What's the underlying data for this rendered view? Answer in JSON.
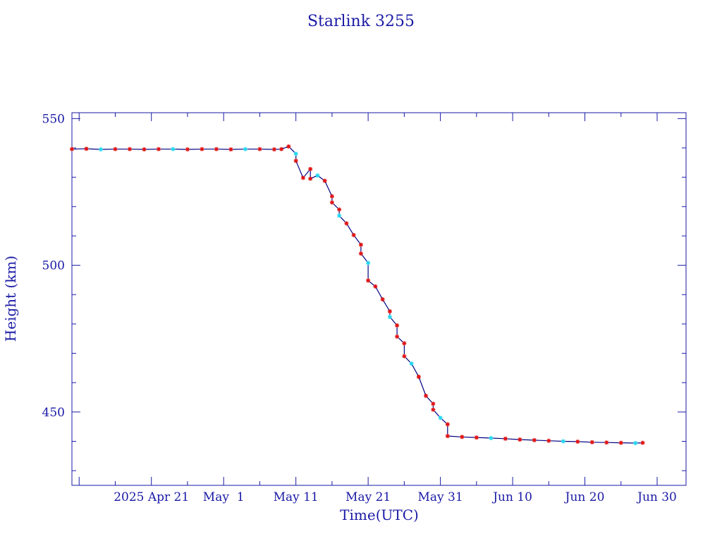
{
  "chart_data": {
    "type": "line",
    "title": "Starlink 3255",
    "xlabel": "Time(UTC)",
    "ylabel": "Height (km)",
    "xlim": [
      "2025-04-10",
      "2025-07-04"
    ],
    "ylim": [
      425,
      552
    ],
    "x_ticks": [
      {
        "date": "2025-04-21",
        "label": "2025 Apr 21"
      },
      {
        "date": "2025-05-01",
        "label": "May  1"
      },
      {
        "date": "2025-05-11",
        "label": "May 11"
      },
      {
        "date": "2025-05-21",
        "label": "May 21"
      },
      {
        "date": "2025-05-31",
        "label": "May 31"
      },
      {
        "date": "2025-06-10",
        "label": "Jun 10"
      },
      {
        "date": "2025-06-20",
        "label": "Jun 20"
      },
      {
        "date": "2025-06-30",
        "label": "Jun 30"
      }
    ],
    "y_ticks": [
      450,
      500,
      550
    ],
    "grid": false,
    "colors": {
      "axis": "#1a1aa6",
      "line": "#000080",
      "marker_red": "#e01010",
      "marker_cyan": "#20d8f0"
    },
    "series": [
      {
        "marker": "star",
        "points": [
          [
            "2025-04-10",
            539.6
          ],
          [
            "2025-04-12",
            539.7
          ],
          [
            "2025-04-14",
            539.5
          ],
          [
            "2025-04-16",
            539.6
          ],
          [
            "2025-04-18",
            539.6
          ],
          [
            "2025-04-20",
            539.5
          ],
          [
            "2025-04-22",
            539.6
          ],
          [
            "2025-04-24",
            539.6
          ],
          [
            "2025-04-26",
            539.5
          ],
          [
            "2025-04-28",
            539.6
          ],
          [
            "2025-04-30",
            539.6
          ],
          [
            "2025-05-02",
            539.5
          ],
          [
            "2025-05-04",
            539.6
          ],
          [
            "2025-05-06",
            539.6
          ],
          [
            "2025-05-08",
            539.5
          ],
          [
            "2025-05-09",
            539.6
          ],
          [
            "2025-05-10",
            540.5
          ],
          [
            "2025-05-11",
            538.0
          ],
          [
            "2025-05-11",
            535.6
          ],
          [
            "2025-05-12",
            529.8
          ],
          [
            "2025-05-13",
            532.8
          ],
          [
            "2025-05-13",
            529.5
          ],
          [
            "2025-05-14",
            530.6
          ],
          [
            "2025-05-15",
            528.8
          ],
          [
            "2025-05-16",
            523.5
          ],
          [
            "2025-05-16",
            521.4
          ],
          [
            "2025-05-17",
            519.0
          ],
          [
            "2025-05-17",
            516.9
          ],
          [
            "2025-05-18",
            514.3
          ],
          [
            "2025-05-19",
            510.3
          ],
          [
            "2025-05-20",
            507.0
          ],
          [
            "2025-05-20",
            504.0
          ],
          [
            "2025-05-21",
            500.8
          ],
          [
            "2025-05-21",
            494.8
          ],
          [
            "2025-05-22",
            492.8
          ],
          [
            "2025-05-23",
            488.4
          ],
          [
            "2025-05-24",
            484.3
          ],
          [
            "2025-05-24",
            482.4
          ],
          [
            "2025-05-25",
            479.5
          ],
          [
            "2025-05-25",
            475.7
          ],
          [
            "2025-05-26",
            473.4
          ],
          [
            "2025-05-26",
            469.0
          ],
          [
            "2025-05-27",
            466.5
          ],
          [
            "2025-05-28",
            462.0
          ],
          [
            "2025-05-29",
            455.5
          ],
          [
            "2025-05-30",
            452.8
          ],
          [
            "2025-05-30",
            450.8
          ],
          [
            "2025-05-31",
            448.0
          ],
          [
            "2025-06-01",
            445.8
          ],
          [
            "2025-06-01",
            441.8
          ],
          [
            "2025-06-03",
            441.5
          ],
          [
            "2025-06-05",
            441.3
          ],
          [
            "2025-06-07",
            441.1
          ],
          [
            "2025-06-09",
            440.9
          ],
          [
            "2025-06-11",
            440.6
          ],
          [
            "2025-06-13",
            440.4
          ],
          [
            "2025-06-15",
            440.2
          ],
          [
            "2025-06-17",
            440.0
          ],
          [
            "2025-06-19",
            439.9
          ],
          [
            "2025-06-21",
            439.7
          ],
          [
            "2025-06-23",
            439.6
          ],
          [
            "2025-06-25",
            439.5
          ],
          [
            "2025-06-27",
            439.4
          ],
          [
            "2025-06-28",
            439.5
          ]
        ]
      }
    ]
  }
}
